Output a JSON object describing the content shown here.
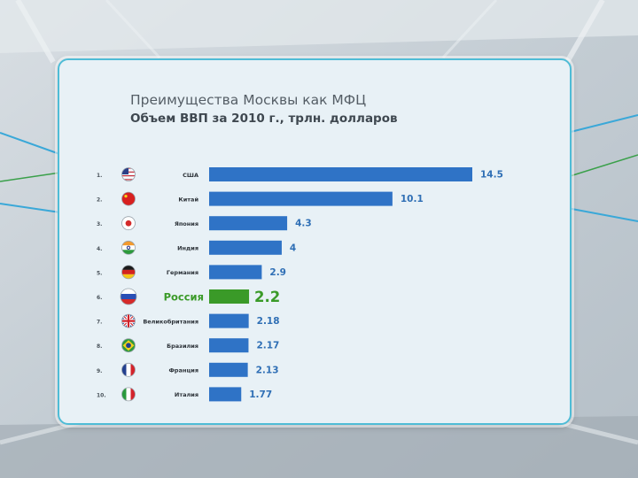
{
  "title": "Преимущества Москвы как МФЦ",
  "subtitle": "Объем ВВП  за 2010 г., трлн. долларов",
  "chart_data": {
    "type": "bar",
    "orientation": "horizontal",
    "title": "Преимущества Москвы как МФЦ",
    "subtitle": "Объем ВВП  за 2010 г., трлн. долларов",
    "categories": [
      "США",
      "Китай",
      "Япония",
      "Индия",
      "Германия",
      "Россия",
      "Великобритания",
      "Бразилия",
      "Франция",
      "Италия"
    ],
    "ranks": [
      "1.",
      "2.",
      "3.",
      "4.",
      "5.",
      "6.",
      "7.",
      "8.",
      "9.",
      "10."
    ],
    "value_labels": [
      "14.5",
      "10.1",
      "4.3",
      "4",
      "2.9",
      "2.2",
      "2.18",
      "2.17",
      "2.13",
      "1.77"
    ],
    "values": [
      14.5,
      10.1,
      4.3,
      4,
      2.9,
      2.2,
      2.18,
      2.17,
      2.13,
      1.77
    ],
    "flag_icons": [
      "usa-flag-icon",
      "china-flag-icon",
      "japan-flag-icon",
      "india-flag-icon",
      "germany-flag-icon",
      "russia-flag-icon",
      "uk-flag-icon",
      "brazil-flag-icon",
      "france-flag-icon",
      "italy-flag-icon"
    ],
    "highlight": "Россия",
    "colors": {
      "bar": "#2f73c6",
      "highlight_bar": "#3a9a28",
      "value_label": "#2f6fb5",
      "highlight_label": "#3a9a28"
    },
    "grid": false,
    "legend": "none"
  }
}
